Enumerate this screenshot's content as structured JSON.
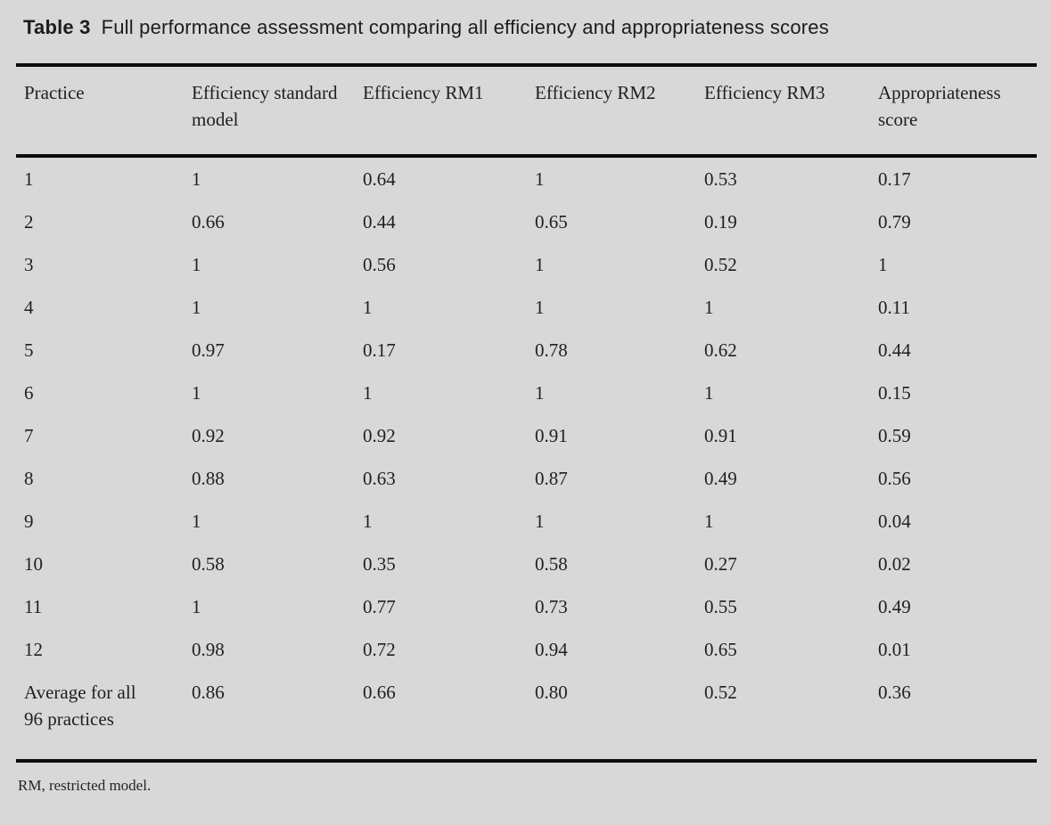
{
  "page": {
    "background_color": "#d8d8d8",
    "text_color": "#1f1f1f",
    "rule_color": "#0c0c0c"
  },
  "table": {
    "label": "Table 3",
    "caption": "Full performance assessment comparing all efficiency and appropriateness scores",
    "columns": [
      "Practice",
      "Efficiency standard model",
      "Efficiency RM1",
      "Efficiency RM2",
      "Efficiency RM3",
      "Appropriateness score"
    ],
    "rows": [
      [
        "1",
        "1",
        "0.64",
        "1",
        "0.53",
        "0.17"
      ],
      [
        "2",
        "0.66",
        "0.44",
        "0.65",
        "0.19",
        "0.79"
      ],
      [
        "3",
        "1",
        "0.56",
        "1",
        "0.52",
        "1"
      ],
      [
        "4",
        "1",
        "1",
        "1",
        "1",
        "0.11"
      ],
      [
        "5",
        "0.97",
        "0.17",
        "0.78",
        "0.62",
        "0.44"
      ],
      [
        "6",
        "1",
        "1",
        "1",
        "1",
        "0.15"
      ],
      [
        "7",
        "0.92",
        "0.92",
        "0.91",
        "0.91",
        "0.59"
      ],
      [
        "8",
        "0.88",
        "0.63",
        "0.87",
        "0.49",
        "0.56"
      ],
      [
        "9",
        "1",
        "1",
        "1",
        "1",
        "0.04"
      ],
      [
        "10",
        "0.58",
        "0.35",
        "0.58",
        "0.27",
        "0.02"
      ],
      [
        "11",
        "1",
        "0.77",
        "0.73",
        "0.55",
        "0.49"
      ],
      [
        "12",
        "0.98",
        "0.72",
        "0.94",
        "0.65",
        "0.01"
      ],
      [
        "Average for all 96 practices",
        "0.86",
        "0.66",
        "0.80",
        "0.52",
        "0.36"
      ]
    ],
    "footnote": "RM, restricted model."
  },
  "chart_data": {
    "type": "table",
    "title": "Table 3 Full performance assessment comparing all efficiency and appropriateness scores",
    "columns": [
      "Practice",
      "Efficiency standard model",
      "Efficiency RM1",
      "Efficiency RM2",
      "Efficiency RM3",
      "Appropriateness score"
    ],
    "rows": [
      [
        "1",
        1,
        0.64,
        1,
        0.53,
        0.17
      ],
      [
        "2",
        0.66,
        0.44,
        0.65,
        0.19,
        0.79
      ],
      [
        "3",
        1,
        0.56,
        1,
        0.52,
        1
      ],
      [
        "4",
        1,
        1,
        1,
        1,
        0.11
      ],
      [
        "5",
        0.97,
        0.17,
        0.78,
        0.62,
        0.44
      ],
      [
        "6",
        1,
        1,
        1,
        1,
        0.15
      ],
      [
        "7",
        0.92,
        0.92,
        0.91,
        0.91,
        0.59
      ],
      [
        "8",
        0.88,
        0.63,
        0.87,
        0.49,
        0.56
      ],
      [
        "9",
        1,
        1,
        1,
        1,
        0.04
      ],
      [
        "10",
        0.58,
        0.35,
        0.58,
        0.27,
        0.02
      ],
      [
        "11",
        1,
        0.77,
        0.73,
        0.55,
        0.49
      ],
      [
        "12",
        0.98,
        0.72,
        0.94,
        0.65,
        0.01
      ],
      [
        "Average for all 96 practices",
        0.86,
        0.66,
        0.8,
        0.52,
        0.36
      ]
    ],
    "footnote": "RM, restricted model."
  }
}
